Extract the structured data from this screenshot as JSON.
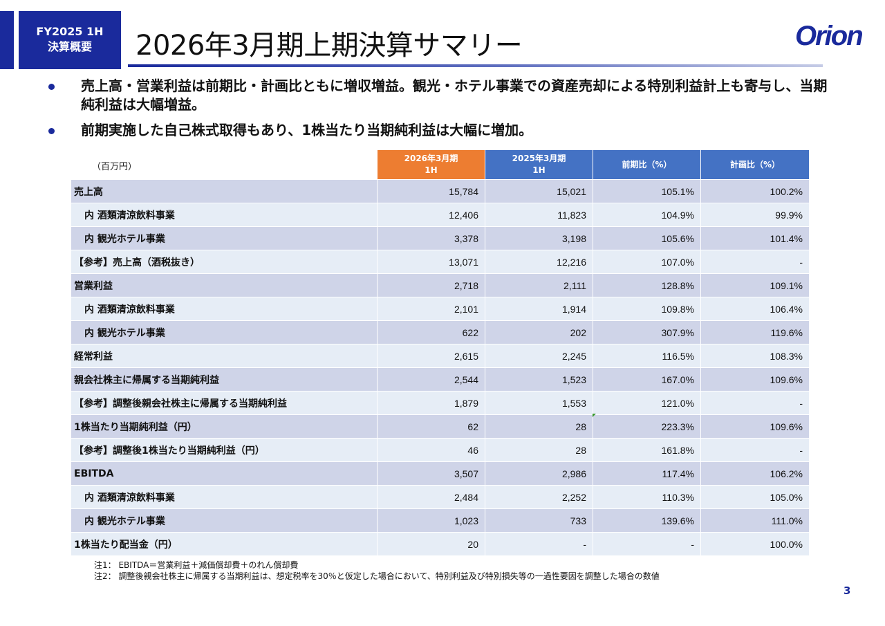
{
  "header": {
    "tag_line1": "FY2025 1H",
    "tag_line2": "決算概要",
    "title": "2026年3月期上期決算サマリー",
    "logo_text": "Orion",
    "brand_color": "#1a2a9c"
  },
  "bullets": [
    "売上高・営業利益は前期比・計画比ともに増収増益。観光・ホテル事業での資産売却による特別利益計上も寄与し、当期純利益は大幅増益。",
    "前期実施した自己株式取得もあり、1株当たり当期純利益は大幅に増加。"
  ],
  "table": {
    "unit": "（百万円）",
    "headers": {
      "current": [
        "2026年3月期",
        "1H"
      ],
      "previous": [
        "2025年3月期",
        "1H"
      ],
      "yoy": "前期比（%）",
      "plan": "計画比（%）"
    },
    "rows": [
      {
        "label": "売上高",
        "current": "15,784",
        "previous": "15,021",
        "yoy": "105.1%",
        "plan": "100.2%"
      },
      {
        "label": "内 酒類清涼飲料事業",
        "current": "12,406",
        "previous": "11,823",
        "yoy": "104.9%",
        "plan": "99.9%"
      },
      {
        "label": "内 観光ホテル事業",
        "current": "3,378",
        "previous": "3,198",
        "yoy": "105.6%",
        "plan": "101.4%"
      },
      {
        "label": "【参考】売上高（酒税抜き）",
        "current": "13,071",
        "previous": "12,216",
        "yoy": "107.0%",
        "plan": "-"
      },
      {
        "label": "営業利益",
        "current": "2,718",
        "previous": "2,111",
        "yoy": "128.8%",
        "plan": "109.1%"
      },
      {
        "label": "内 酒類清涼飲料事業",
        "current": "2,101",
        "previous": "1,914",
        "yoy": "109.8%",
        "plan": "106.4%"
      },
      {
        "label": "内 観光ホテル事業",
        "current": "622",
        "previous": "202",
        "yoy": "307.9%",
        "plan": "119.6%"
      },
      {
        "label": "経常利益",
        "current": "2,615",
        "previous": "2,245",
        "yoy": "116.5%",
        "plan": "108.3%"
      },
      {
        "label": "親会社株主に帰属する当期純利益",
        "current": "2,544",
        "previous": "1,523",
        "yoy": "167.0%",
        "plan": "109.6%"
      },
      {
        "label": "【参考】調整後親会社株主に帰属する当期純利益",
        "current": "1,879",
        "previous": "1,553",
        "yoy": "121.0%",
        "plan": "-"
      },
      {
        "label": "1株当たり当期純利益（円）",
        "current": "62",
        "previous": "28",
        "yoy": "223.3%",
        "plan": "109.6%"
      },
      {
        "label": "【参考】調整後1株当たり当期純利益（円）",
        "current": "46",
        "previous": "28",
        "yoy": "161.8%",
        "plan": "-"
      },
      {
        "label": "EBITDA",
        "current": "3,507",
        "previous": "2,986",
        "yoy": "117.4%",
        "plan": "106.2%"
      },
      {
        "label": "内 酒類清涼飲料事業",
        "current": "2,484",
        "previous": "2,252",
        "yoy": "110.3%",
        "plan": "105.0%"
      },
      {
        "label": "内 観光ホテル事業",
        "current": "1,023",
        "previous": "733",
        "yoy": "139.6%",
        "plan": "111.0%"
      },
      {
        "label": "1株当たり配当金（円）",
        "current": "20",
        "previous": "-",
        "yoy": "-",
        "plan": "100.0%"
      }
    ]
  },
  "notes": [
    "注1：  EBITDA＝営業利益＋減価償却費＋のれん償却費",
    "注2：  調整後親会社株主に帰属する当期利益は、想定税率を30％と仮定した場合において、特別利益及び特別損失等の一過性要因を調整した場合の数値"
  ],
  "page_number": "3",
  "colors": {
    "header_current": "#ed7d31",
    "header_other": "#4472c4",
    "row_dark": "#cfd4e8",
    "row_light": "#e6edf6"
  }
}
